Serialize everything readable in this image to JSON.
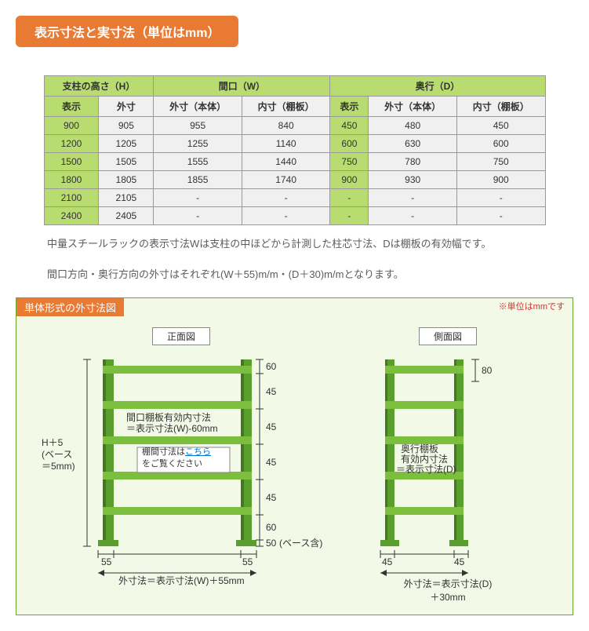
{
  "title": "表示寸法と実寸法（単位はmm）",
  "table": {
    "group_headers": [
      "支柱の高さ（H）",
      "間口（W）",
      "奥行（D）"
    ],
    "sub_headers": [
      "表示",
      "外寸",
      "外寸（本体）",
      "内寸（棚板）",
      "表示",
      "外寸（本体）",
      "内寸（棚板）"
    ],
    "rows": [
      [
        "900",
        "905",
        "955",
        "840",
        "450",
        "480",
        "450"
      ],
      [
        "1200",
        "1205",
        "1255",
        "1140",
        "600",
        "630",
        "600"
      ],
      [
        "1500",
        "1505",
        "1555",
        "1440",
        "750",
        "780",
        "750"
      ],
      [
        "1800",
        "1805",
        "1855",
        "1740",
        "900",
        "930",
        "900"
      ],
      [
        "2100",
        "2105",
        "-",
        "-",
        "-",
        "-",
        "-"
      ],
      [
        "2400",
        "2405",
        "-",
        "-",
        "-",
        "-",
        "-"
      ]
    ],
    "colors": {
      "green": "#b8dc70",
      "grey": "#f0f0f0",
      "border": "#999999"
    }
  },
  "note_lines": [
    "中量スチールラックの表示寸法Wは支柱の中ほどから計測した柱芯寸法、Dは棚板の有効幅です。",
    "間口方向・奥行方向の外寸はそれぞれ(W＋55)m/m・(D＋30)m/mとなります。"
  ],
  "diagram": {
    "box_title": "単体形式の外寸法図",
    "unit_note": "※単位はmmです",
    "front": {
      "label": "正面図",
      "h_label_1": "H＋5",
      "h_label_2": "(ベース",
      "h_label_3": "＝5mm)",
      "w_inner_1": "間口棚板有効内寸法",
      "w_inner_2": "＝表示寸法(W)-60mm",
      "clearance_1": "棚間寸法は",
      "clearance_link": "こちら",
      "clearance_2": "をご覧ください",
      "top_dim": "60",
      "gap_dim": "45",
      "bottom_dim_1": "60",
      "bottom_dim_2": "50",
      "base_note": "(ベース含)",
      "foot_left": "55",
      "foot_right": "55",
      "outer": "外寸法＝表示寸法(W)＋55mm"
    },
    "side": {
      "label": "側面図",
      "top_dim": "80",
      "inner_1": "奥行棚板",
      "inner_2": "有効内寸法",
      "inner_3": "＝表示寸法(D)",
      "foot_left": "45",
      "foot_right": "45",
      "outer_1": "外寸法＝表示寸法(D)",
      "outer_2": "＋30mm"
    },
    "colors": {
      "post": "#5a9e2d",
      "shelf": "#7cbf3e",
      "shade": "#3f7a1c",
      "bg": "#f2f9e6",
      "border": "#6aa62a",
      "title_bg": "#e87a33"
    }
  }
}
